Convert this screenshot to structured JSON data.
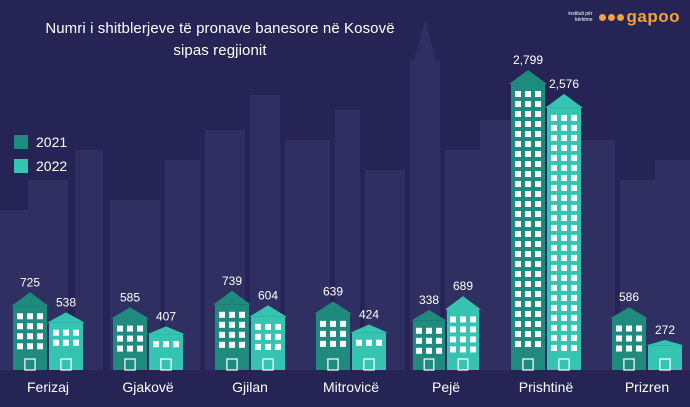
{
  "header": {
    "title_line1": "Numri i shitblerjeve të pronave banesore në Kosovë",
    "title_line2": "sipas regjionit",
    "brand_small": "instituti për kërkime",
    "brand_word": "gapoo"
  },
  "colors": {
    "background": "#262455",
    "skyline": "#302f62",
    "series_2021": "#1f8b7f",
    "series_2022": "#35c4b1",
    "window": "#ffffff",
    "text": "#ffffff",
    "brand": "#f2a23a"
  },
  "chart_data": {
    "type": "bar",
    "title": "",
    "categories": [
      "Ferizaj",
      "Gjakovë",
      "Gjilan",
      "Mitrovicë",
      "Pejë",
      "Prishtinë",
      "Prizren"
    ],
    "series": [
      {
        "name": "2021",
        "values": [
          725,
          585,
          739,
          639,
          338,
          2799,
          586
        ]
      },
      {
        "name": "2022",
        "values": [
          538,
          407,
          604,
          424,
          689,
          2576,
          272
        ]
      }
    ],
    "value_labels": [
      [
        "725",
        "585",
        "739",
        "639",
        "338",
        "2,799",
        "586"
      ],
      [
        "538",
        "407",
        "604",
        "424",
        "689",
        "2,576",
        "272"
      ]
    ],
    "xlabel": "",
    "ylabel": "",
    "legend_position": "left",
    "grid": false,
    "ylim": [
      0,
      2799
    ],
    "bar_style": "buildings"
  }
}
